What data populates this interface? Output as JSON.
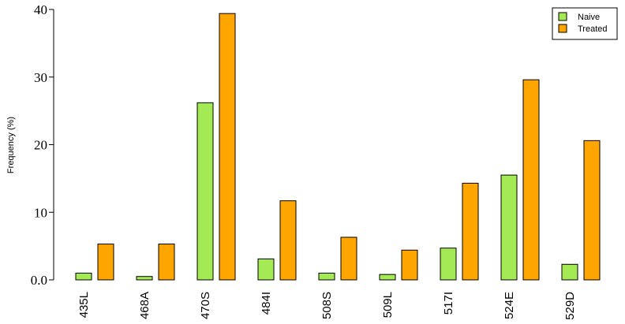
{
  "chart_data": {
    "type": "bar",
    "y_label": "Frequency (%)",
    "categories": [
      "435L",
      "468A",
      "470S",
      "484I",
      "508S",
      "509L",
      "517I",
      "524E",
      "529D"
    ],
    "series": [
      {
        "name": "Naive",
        "color": "#a3ea55",
        "values": [
          1.0,
          0.5,
          26.2,
          3.1,
          1.0,
          0.8,
          4.7,
          15.5,
          2.3
        ]
      },
      {
        "name": "Treated",
        "color": "#ffa500",
        "values": [
          5.3,
          5.3,
          39.4,
          11.7,
          6.3,
          4.4,
          14.3,
          29.6,
          20.6
        ]
      }
    ],
    "ylim": [
      0,
      40
    ],
    "yticks": [
      {
        "value": 0,
        "label": "0.0"
      },
      10,
      20,
      30,
      40
    ],
    "legend": "top-right"
  }
}
